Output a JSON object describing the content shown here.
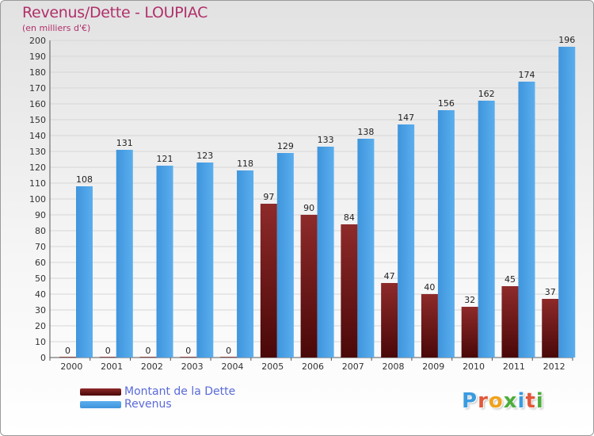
{
  "chart_data": {
    "type": "bar",
    "title": "Revenus/Dette - LOUPIAC",
    "subtitle": "(en milliers d'€)",
    "categories": [
      "2000",
      "2001",
      "2002",
      "2003",
      "2004",
      "2005",
      "2006",
      "2007",
      "2008",
      "2009",
      "2010",
      "2011",
      "2012"
    ],
    "series": [
      {
        "name": "Montant de la Dette",
        "color": "#7a1a1a",
        "values": [
          0,
          0,
          0,
          0,
          0,
          97,
          90,
          84,
          47,
          40,
          32,
          45,
          37
        ]
      },
      {
        "name": "Revenus",
        "color": "#4aa0e6",
        "values": [
          108,
          131,
          121,
          123,
          118,
          129,
          133,
          138,
          147,
          156,
          162,
          174,
          196
        ]
      }
    ],
    "ylim": [
      0,
      200
    ],
    "yticks": [
      0,
      10,
      20,
      30,
      40,
      50,
      60,
      70,
      80,
      90,
      100,
      110,
      120,
      130,
      140,
      150,
      160,
      170,
      180,
      190,
      200
    ],
    "grid": true,
    "legend_position": "bottom-left"
  },
  "logo": {
    "letters": [
      {
        "ch": "P",
        "color": "#3a9be0"
      },
      {
        "ch": "r",
        "color": "#e2583a"
      },
      {
        "ch": "o",
        "color": "#f0a21c"
      },
      {
        "ch": "x",
        "color": "#4cae3c"
      },
      {
        "ch": "i",
        "color": "#3a9be0"
      },
      {
        "ch": "t",
        "color": "#e2583a"
      },
      {
        "ch": "i",
        "color": "#4cae3c"
      }
    ]
  }
}
